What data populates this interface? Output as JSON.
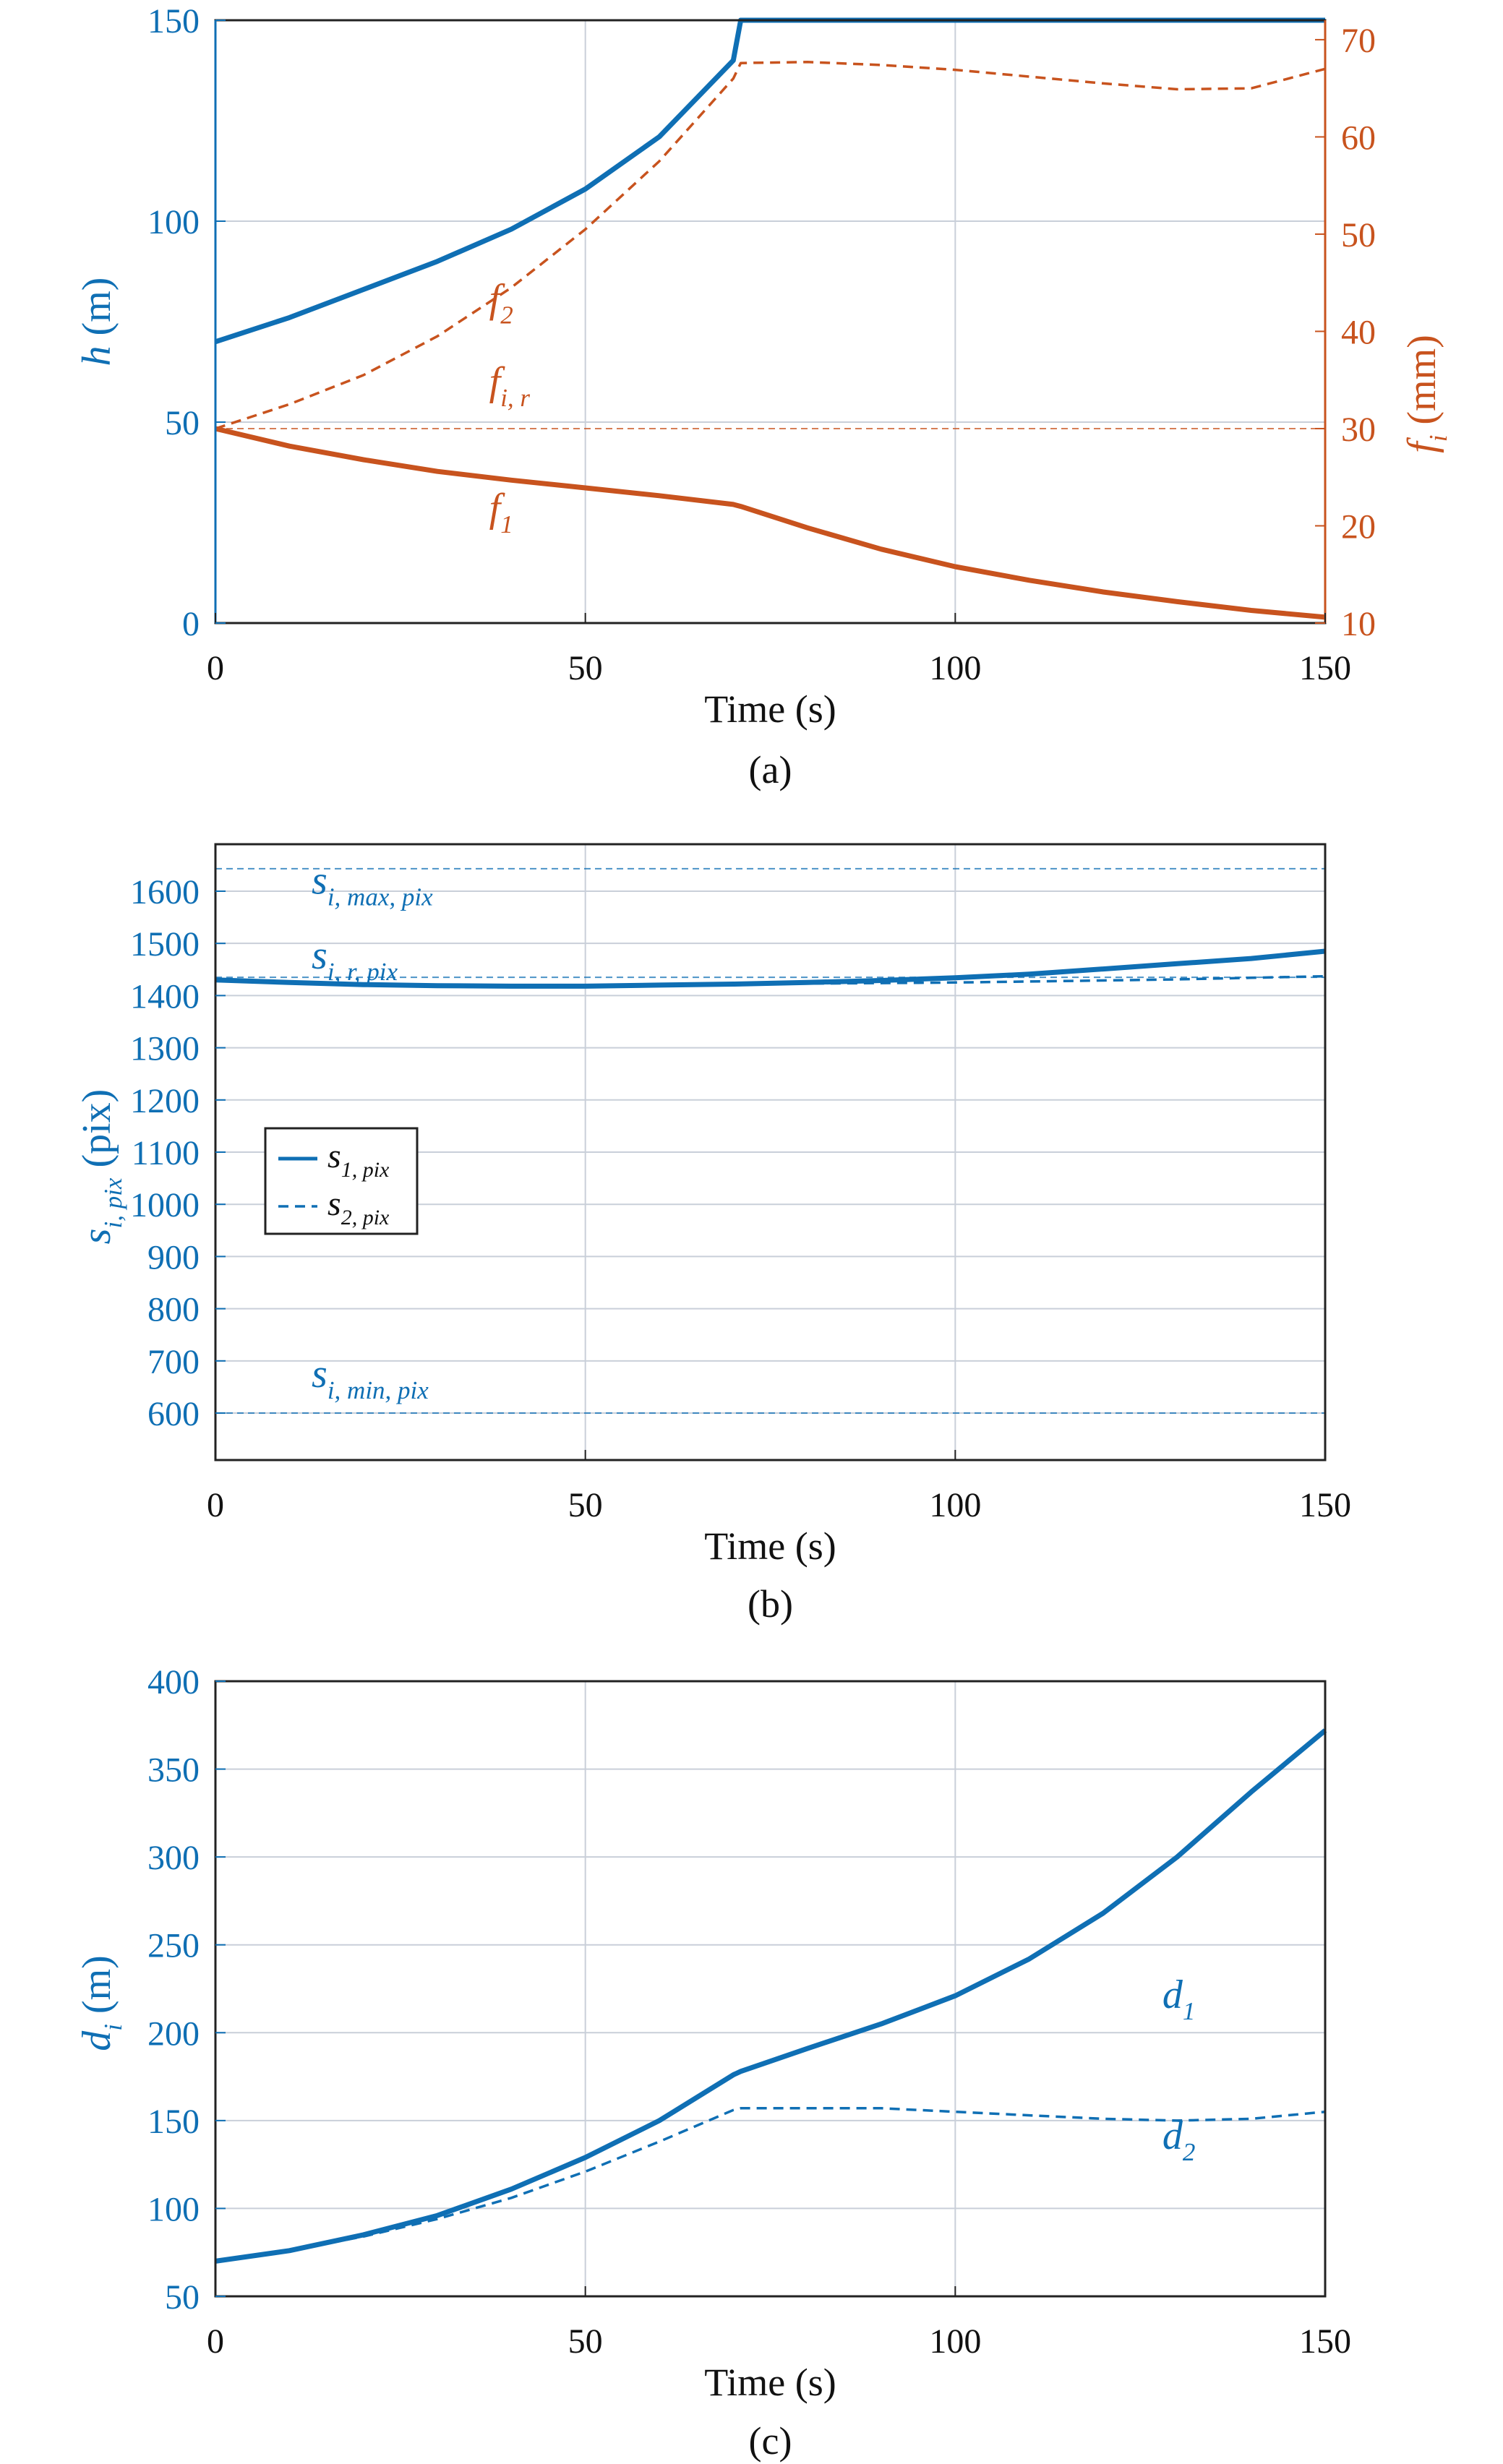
{
  "colors": {
    "blue": "#0f6fb4",
    "orange": "#c8531e",
    "grid": "#c9cfd9",
    "axis": "#222222"
  },
  "chart_data": [
    {
      "caption": "(a)",
      "type": "line",
      "xlabel": "Time (s)",
      "xlim": [
        0,
        150
      ],
      "xticks": [
        "0",
        "50",
        "100",
        "150"
      ],
      "left_axis": {
        "label_var": "h",
        "label_unit": "(m)",
        "lim": [
          0,
          150
        ],
        "ticks": [
          "0",
          "50",
          "100",
          "150"
        ]
      },
      "right_axis": {
        "label_var": "f",
        "label_sub": "i",
        "label_unit": "(mm)",
        "lim": [
          10,
          72
        ],
        "ticks": [
          "10",
          "20",
          "30",
          "40",
          "50",
          "60",
          "70"
        ]
      },
      "grid": true,
      "series": [
        {
          "axis": "left",
          "style": "solid",
          "color": "blue",
          "x": [
            0,
            10,
            20,
            30,
            40,
            50,
            60,
            70,
            71,
            80,
            90,
            100,
            110,
            120,
            130,
            140,
            150
          ],
          "y": [
            70,
            76,
            83,
            90,
            98,
            108,
            121,
            140,
            150,
            150,
            150,
            150,
            150,
            150,
            150,
            150,
            150
          ]
        },
        {
          "axis": "right",
          "style": "dashed",
          "color": "orange",
          "x": [
            0,
            10,
            20,
            30,
            40,
            50,
            60,
            70,
            71,
            80,
            90,
            100,
            110,
            120,
            130,
            140,
            150
          ],
          "y": [
            30,
            32.5,
            35.5,
            39.5,
            44.5,
            50.5,
            57.5,
            66,
            67.6,
            67.7,
            67.4,
            66.9,
            66.2,
            65.5,
            64.9,
            65.0,
            67.0
          ]
        },
        {
          "axis": "right",
          "style": "solid",
          "color": "orange",
          "x": [
            0,
            10,
            20,
            30,
            40,
            50,
            60,
            70,
            71,
            80,
            90,
            100,
            110,
            120,
            130,
            140,
            150
          ],
          "y": [
            30,
            28.2,
            26.8,
            25.6,
            24.7,
            23.9,
            23.1,
            22.2,
            22.0,
            19.8,
            17.6,
            15.8,
            14.4,
            13.2,
            12.2,
            11.3,
            10.6
          ]
        },
        {
          "axis": "right",
          "style": "dashed-thin",
          "color": "orange",
          "x": [
            0,
            150
          ],
          "y": [
            30,
            30
          ]
        }
      ],
      "annotations": [
        {
          "base": "f",
          "sub": "2",
          "x": 37,
          "y_right": 42,
          "color": "orange"
        },
        {
          "base": "f",
          "sub": "i, r",
          "x": 37,
          "y_right": 33.5,
          "color": "orange"
        },
        {
          "base": "f",
          "sub": "1",
          "x": 37,
          "y_right": 20.5,
          "color": "orange"
        }
      ]
    },
    {
      "caption": "(b)",
      "type": "line",
      "xlabel": "Time (s)",
      "xlim": [
        0,
        150
      ],
      "xticks": [
        "0",
        "50",
        "100",
        "150"
      ],
      "ylabel_var": "s",
      "ylabel_sub": "i, pix",
      "ylabel_unit": "(pix)",
      "ylim": [
        510,
        1690
      ],
      "yticks": [
        "600",
        "700",
        "800",
        "900",
        "1000",
        "1100",
        "1200",
        "1300",
        "1400",
        "1500",
        "1600"
      ],
      "grid": true,
      "series": [
        {
          "name": "s1,pix",
          "style": "solid",
          "color": "blue",
          "x": [
            0,
            10,
            20,
            30,
            40,
            50,
            60,
            70,
            80,
            90,
            100,
            110,
            120,
            130,
            140,
            150
          ],
          "y": [
            1430,
            1425,
            1421,
            1419,
            1418,
            1418,
            1420,
            1422,
            1425,
            1429,
            1434,
            1441,
            1451,
            1461,
            1471,
            1485
          ]
        },
        {
          "name": "s2,pix",
          "style": "dashed",
          "color": "blue",
          "x": [
            0,
            10,
            20,
            30,
            40,
            50,
            60,
            70,
            80,
            90,
            100,
            110,
            120,
            130,
            140,
            150
          ],
          "y": [
            1430,
            1425,
            1421,
            1419,
            1418,
            1418,
            1420,
            1422,
            1423,
            1424,
            1425,
            1427,
            1429,
            1431,
            1434,
            1437
          ]
        },
        {
          "style": "dashed-thin",
          "color": "blue",
          "x": [
            0,
            150
          ],
          "y": [
            1643,
            1643
          ]
        },
        {
          "style": "dashed-thin",
          "color": "blue",
          "x": [
            0,
            150
          ],
          "y": [
            1435,
            1435
          ]
        },
        {
          "style": "dashed-thin",
          "color": "blue",
          "x": [
            0,
            150
          ],
          "y": [
            600,
            600
          ]
        }
      ],
      "annotations": [
        {
          "base": "s",
          "sub": "i, max, pix",
          "x": 13,
          "y": 1595,
          "color": "blue"
        },
        {
          "base": "s",
          "sub": "i, r, pix",
          "x": 13,
          "y": 1452,
          "color": "blue"
        },
        {
          "base": "s",
          "sub": "i, min, pix",
          "x": 13,
          "y": 650,
          "color": "blue"
        }
      ],
      "legend": [
        {
          "base": "s",
          "sub": "1, pix",
          "style": "solid"
        },
        {
          "base": "s",
          "sub": "2, pix",
          "style": "dashed"
        }
      ]
    },
    {
      "caption": "(c)",
      "type": "line",
      "xlabel": "Time (s)",
      "xlim": [
        0,
        150
      ],
      "xticks": [
        "0",
        "50",
        "100",
        "150"
      ],
      "ylabel_var": "d",
      "ylabel_sub": "i",
      "ylabel_unit": "(m)",
      "ylim": [
        50,
        400
      ],
      "yticks": [
        "50",
        "100",
        "150",
        "200",
        "250",
        "300",
        "350",
        "400"
      ],
      "grid": true,
      "series": [
        {
          "name": "d1",
          "style": "solid",
          "color": "blue",
          "x": [
            0,
            10,
            20,
            30,
            40,
            50,
            60,
            70,
            71,
            80,
            90,
            100,
            110,
            120,
            130,
            140,
            150
          ],
          "y": [
            70,
            76,
            85,
            96,
            111,
            129,
            150,
            176,
            178,
            191,
            205,
            221,
            242,
            268,
            300,
            337,
            372
          ]
        },
        {
          "name": "d2",
          "style": "dashed",
          "color": "blue",
          "x": [
            0,
            10,
            20,
            30,
            40,
            50,
            60,
            70,
            71,
            80,
            90,
            100,
            110,
            120,
            130,
            140,
            150
          ],
          "y": [
            70,
            76,
            84,
            94,
            106,
            121,
            138,
            156,
            157,
            157,
            157,
            155,
            153,
            151,
            150,
            151,
            155
          ]
        }
      ],
      "annotations": [
        {
          "base": "d",
          "sub": "1",
          "x": 128,
          "y": 214,
          "color": "blue"
        },
        {
          "base": "d",
          "sub": "2",
          "x": 128,
          "y": 134,
          "color": "blue"
        }
      ]
    }
  ]
}
